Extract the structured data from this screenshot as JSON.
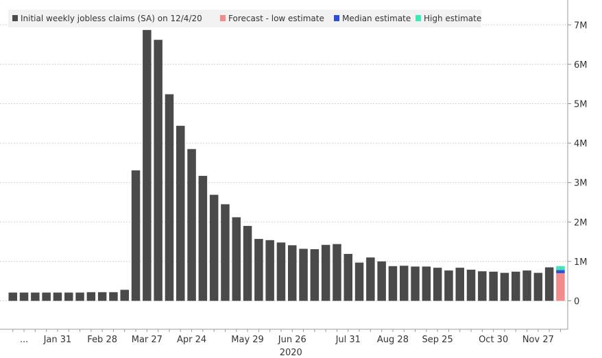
{
  "chart_data": {
    "type": "bar",
    "stacked": true,
    "legend": [
      {
        "label": "Initial weekly jobless claims (SA) on 12/4/20",
        "color": "#4a4a4a"
      },
      {
        "label": "Forecast - low estimate",
        "color": "#f28c8c"
      },
      {
        "label": "Median estimate",
        "color": "#2f4fd8"
      },
      {
        "label": "High estimate",
        "color": "#3ee6b8"
      }
    ],
    "legend_position": "top-left",
    "y_axis_position": "right",
    "ylim": [
      -0.9,
      7.2
    ],
    "y_ticks": [
      {
        "value": 7,
        "label": "7M"
      },
      {
        "value": 6,
        "label": "6M"
      },
      {
        "value": 5,
        "label": "5M"
      },
      {
        "value": 4,
        "label": "4M"
      },
      {
        "value": 3,
        "label": "3M"
      },
      {
        "value": 2,
        "label": "2M"
      },
      {
        "value": 1,
        "label": "1M"
      },
      {
        "value": 0,
        "label": "0"
      }
    ],
    "x_tick_labels": [
      {
        "index": 1,
        "label": "..."
      },
      {
        "index": 4,
        "label": "Jan 31"
      },
      {
        "index": 8,
        "label": "Feb 28"
      },
      {
        "index": 12,
        "label": "Mar 27"
      },
      {
        "index": 16,
        "label": "Apr 24"
      },
      {
        "index": 21,
        "label": "May 29"
      },
      {
        "index": 25,
        "label": "Jun 26"
      },
      {
        "index": 30,
        "label": "Jul 31"
      },
      {
        "index": 34,
        "label": "Aug 28"
      },
      {
        "index": 38,
        "label": "Sep 25"
      },
      {
        "index": 43,
        "label": "Oct 30"
      },
      {
        "index": 47,
        "label": "Nov 27"
      }
    ],
    "year_label": {
      "index": 25,
      "label": "2020"
    },
    "grid": "horizontal-dashed",
    "values_millions": [
      0.21,
      0.21,
      0.21,
      0.21,
      0.21,
      0.21,
      0.21,
      0.22,
      0.22,
      0.22,
      0.28,
      3.31,
      6.87,
      6.62,
      5.24,
      4.44,
      3.85,
      3.17,
      2.69,
      2.45,
      2.12,
      1.9,
      1.57,
      1.54,
      1.48,
      1.41,
      1.32,
      1.31,
      1.42,
      1.44,
      1.19,
      0.97,
      1.1,
      1.0,
      0.88,
      0.89,
      0.87,
      0.87,
      0.84,
      0.77,
      0.84,
      0.79,
      0.75,
      0.74,
      0.71,
      0.74,
      0.77,
      0.71,
      0.85
    ],
    "forecast_millions": {
      "low": 0.7,
      "median": 0.78,
      "high": 0.88
    }
  }
}
